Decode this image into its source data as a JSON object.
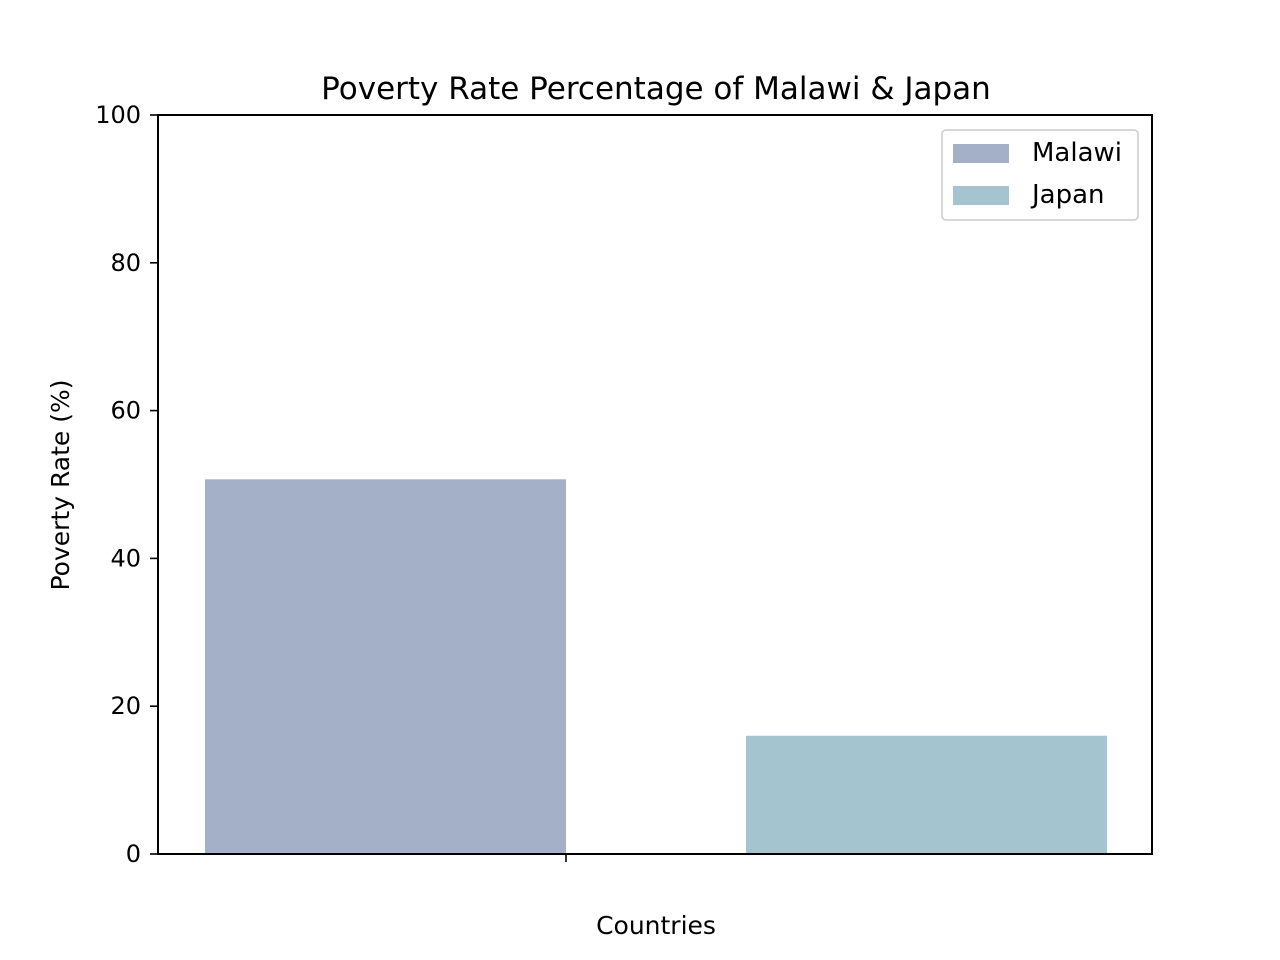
{
  "chart_data": {
    "type": "bar",
    "title": "Poverty Rate Percentage of Malawi & Japan",
    "xlabel": "Countries",
    "ylabel": "Poverty Rate (%)",
    "ylim": [
      0,
      100
    ],
    "yticks": [
      "0",
      "20",
      "40",
      "60",
      "80",
      "100"
    ],
    "grid": false,
    "legend_position": "top-right",
    "series": [
      {
        "name": "Malawi",
        "value": 50.7,
        "color": "#a3b0c8"
      },
      {
        "name": "Japan",
        "value": 16.0,
        "color": "#a4c5d0"
      }
    ]
  }
}
